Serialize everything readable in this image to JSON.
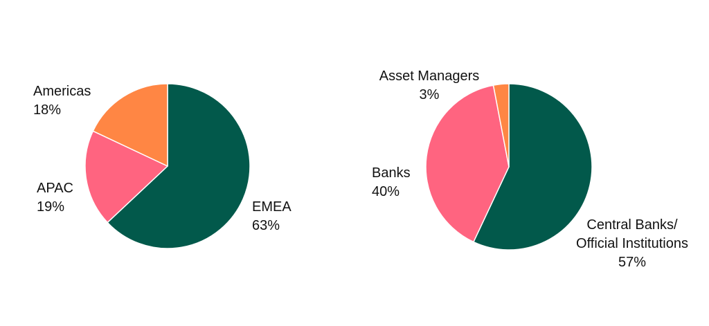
{
  "chart_data": [
    {
      "type": "pie",
      "title": "",
      "slices": [
        {
          "label": "EMEA",
          "value": 63,
          "value_label": "63%",
          "color": "#02594B"
        },
        {
          "label": "APAC",
          "value": 19,
          "value_label": "19%",
          "color": "#FF6480"
        },
        {
          "label": "Americas",
          "value": 18,
          "value_label": "18%",
          "color": "#FF8644"
        }
      ],
      "start": "12 o'clock",
      "direction": "clockwise",
      "legend": "none"
    },
    {
      "type": "pie",
      "title": "",
      "slices": [
        {
          "label": "Central Banks/ Official Institutions",
          "label_lines": [
            "Central Banks/",
            "Official Institutions"
          ],
          "value": 57,
          "value_label": "57%",
          "color": "#02594B"
        },
        {
          "label": "Banks",
          "value": 40,
          "value_label": "40%",
          "color": "#FF6480"
        },
        {
          "label": "Asset Managers",
          "value": 3,
          "value_label": "3%",
          "color": "#FF8644"
        }
      ],
      "start": "12 o'clock",
      "direction": "clockwise",
      "legend": "none"
    }
  ]
}
